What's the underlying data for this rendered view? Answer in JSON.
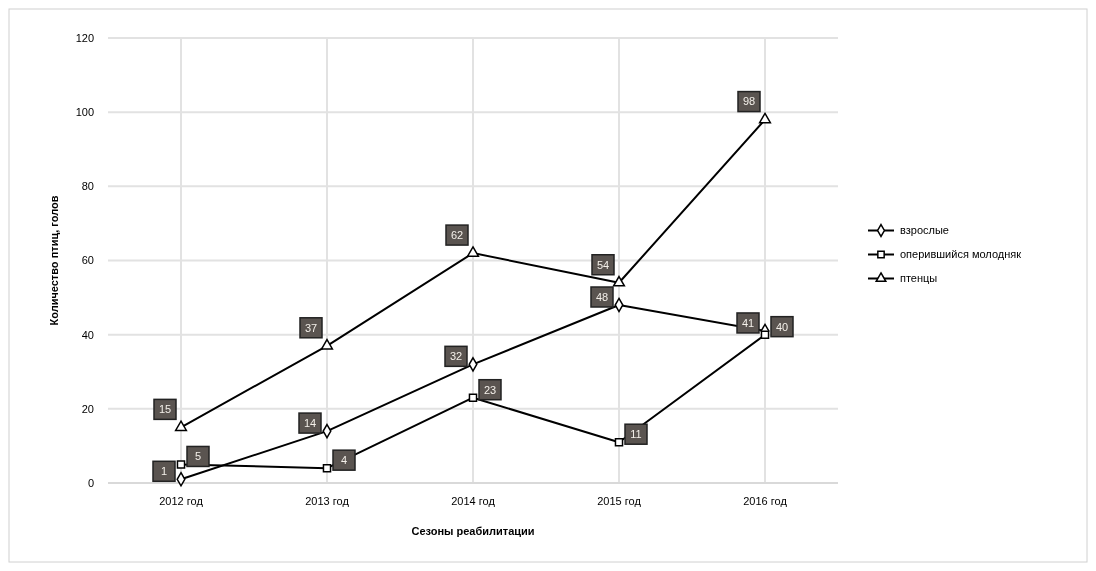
{
  "chart_data": {
    "type": "line",
    "xlabel": "Сезоны реабилитации",
    "ylabel": "Количество птиц, голов",
    "categories": [
      "2012 год",
      "2013 год",
      "2014 год",
      "2015 год",
      "2016 год"
    ],
    "series": [
      {
        "name": "взрослые",
        "color": "#000000",
        "marker": "diamond",
        "values": [
          1,
          14,
          32,
          48,
          41
        ]
      },
      {
        "name": "оперившийся молодняк",
        "color": "#000000",
        "marker": "square",
        "values": [
          5,
          4,
          23,
          11,
          40
        ]
      },
      {
        "name": "птенцы",
        "color": "#000000",
        "marker": "triangle",
        "values": [
          15,
          37,
          62,
          54,
          98
        ]
      }
    ],
    "ylim": [
      0,
      120
    ],
    "yticks": [
      0,
      20,
      40,
      60,
      80,
      100,
      120
    ],
    "grid": true,
    "legend": "right",
    "data_labels": true,
    "line_style": "solid"
  }
}
